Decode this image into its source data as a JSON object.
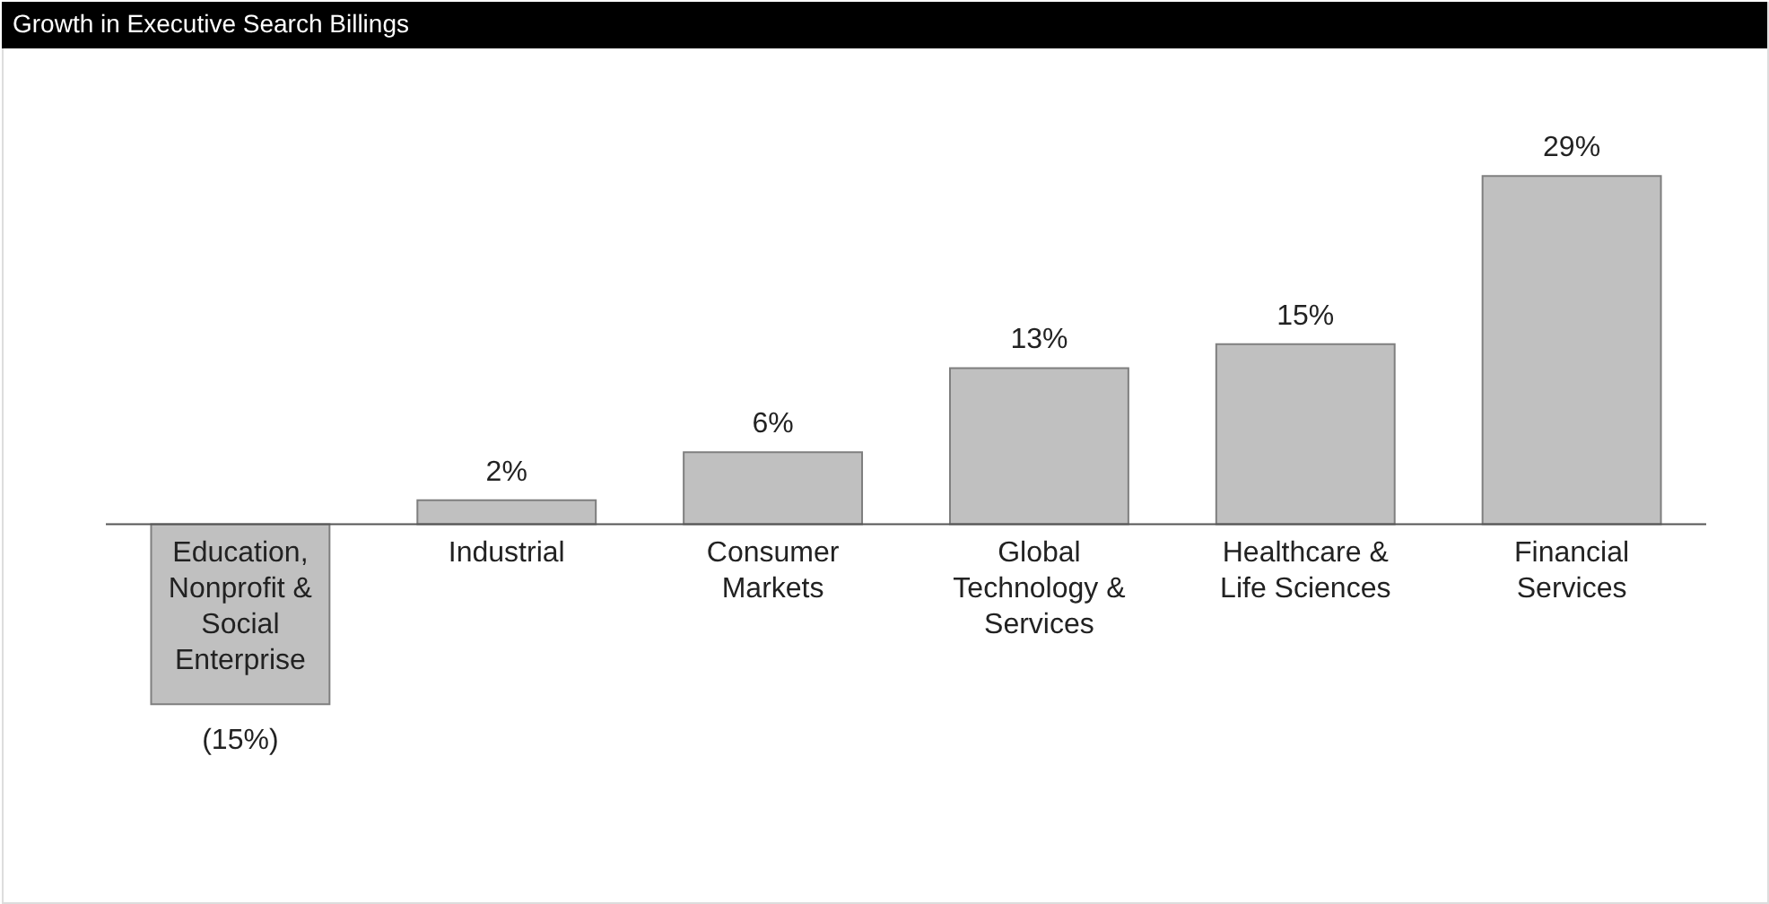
{
  "chart_data": {
    "type": "bar",
    "title": "Growth in Executive Search Billings",
    "categories": [
      "Education, Nonprofit & Social Enterprise",
      "Industrial",
      "Consumer Markets",
      "Global Technology & Services",
      "Healthcare & Life Sciences",
      "Financial Services"
    ],
    "values": [
      -15,
      2,
      6,
      13,
      15,
      29
    ],
    "value_labels": [
      "(15%)",
      "2%",
      "6%",
      "13%",
      "15%",
      "29%"
    ],
    "color": "#c0c0c0",
    "grid": false
  }
}
